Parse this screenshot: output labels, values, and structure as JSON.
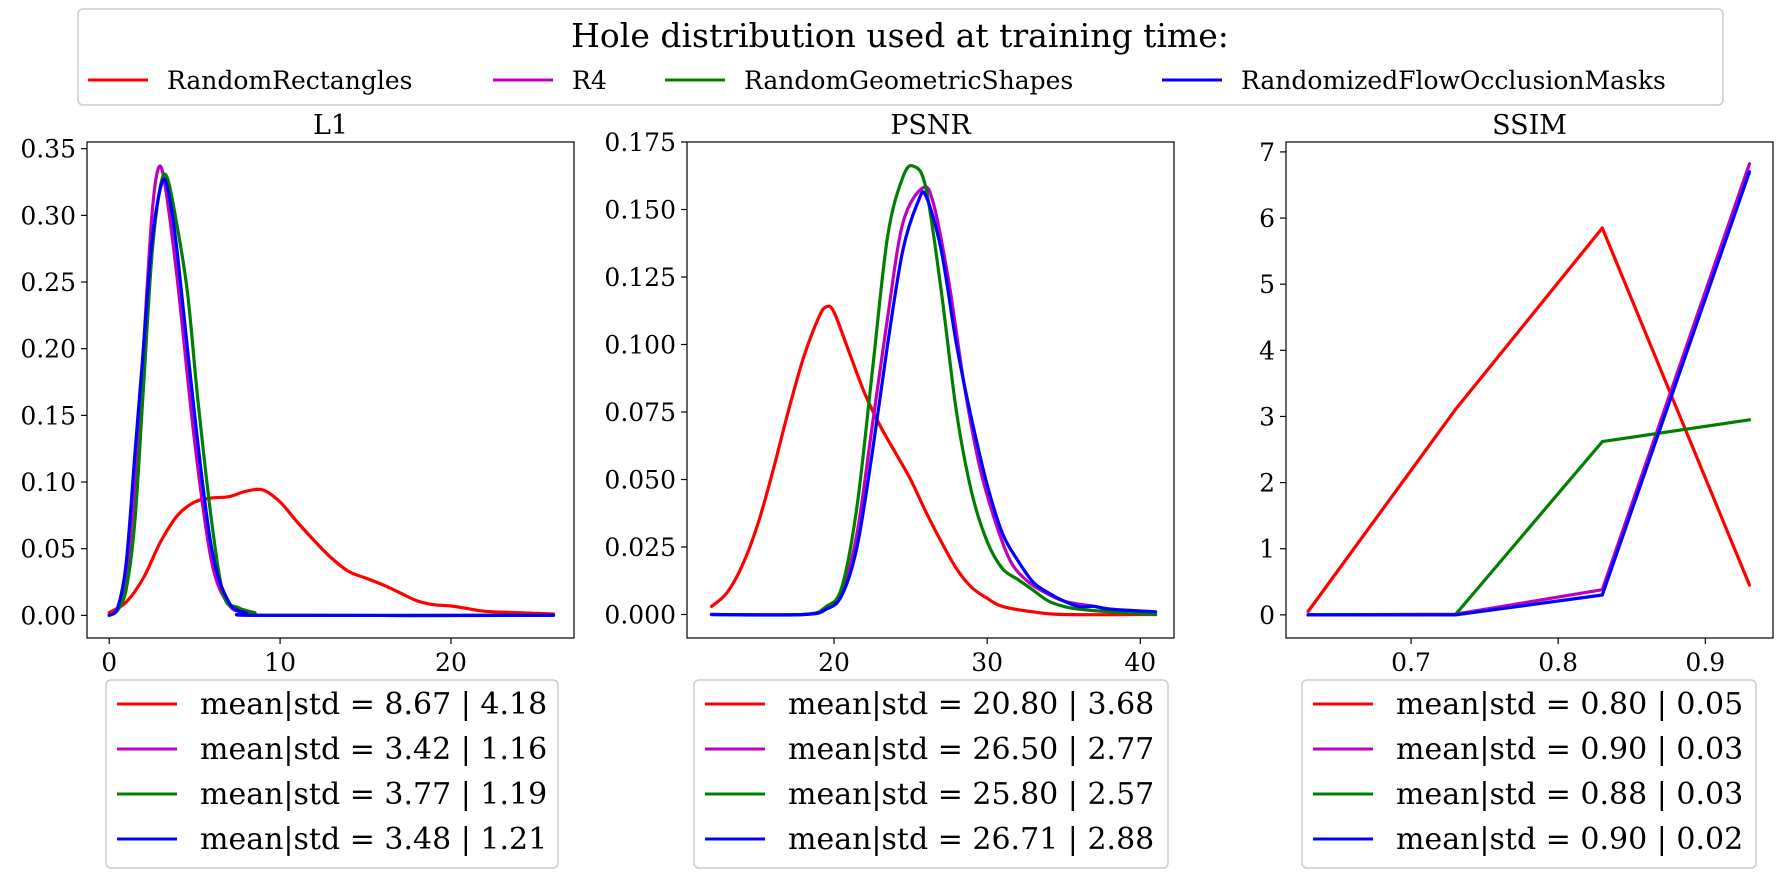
{
  "figure_title": "Hole distribution used at training time:",
  "legend_entries": [
    {
      "name": "RandomRectangles",
      "color": "#ff0000"
    },
    {
      "name": "R4",
      "color": "#bf00bf"
    },
    {
      "name": "RandomGeometricShapes",
      "color": "#008000"
    },
    {
      "name": "RandomizedFlowOcclusionMasks",
      "color": "#0000ff"
    }
  ],
  "chart_data": [
    {
      "type": "line",
      "title": "L1",
      "xlim": [
        -1.3,
        27.2
      ],
      "ylim": [
        -0.017,
        0.355
      ],
      "xticks": [
        0,
        10,
        20
      ],
      "xtick_labels": [
        "0",
        "10",
        "20"
      ],
      "yticks": [
        0.0,
        0.05,
        0.1,
        0.15,
        0.2,
        0.25,
        0.3,
        0.35
      ],
      "ytick_labels": [
        "0.00",
        "0.05",
        "0.10",
        "0.15",
        "0.20",
        "0.25",
        "0.30",
        "0.35"
      ],
      "series": [
        {
          "name": "RandomRectangles",
          "color": "#ff0000",
          "legend": "mean|std = 8.67 | 4.18",
          "points": [
            [
              0,
              0.002
            ],
            [
              1,
              0.01
            ],
            [
              2,
              0.028
            ],
            [
              3,
              0.055
            ],
            [
              4,
              0.075
            ],
            [
              5,
              0.085
            ],
            [
              6,
              0.088
            ],
            [
              7,
              0.089
            ],
            [
              8,
              0.093
            ],
            [
              9,
              0.094
            ],
            [
              10,
              0.085
            ],
            [
              11,
              0.07
            ],
            [
              12,
              0.056
            ],
            [
              13,
              0.043
            ],
            [
              14,
              0.033
            ],
            [
              15,
              0.028
            ],
            [
              16,
              0.023
            ],
            [
              17,
              0.017
            ],
            [
              18,
              0.011
            ],
            [
              19,
              0.008
            ],
            [
              20,
              0.007
            ],
            [
              21,
              0.005
            ],
            [
              22,
              0.003
            ],
            [
              24,
              0.002
            ],
            [
              26,
              0.001
            ]
          ]
        },
        {
          "name": "R4",
          "color": "#bf00bf",
          "legend": "mean|std = 3.42 | 1.16",
          "points": [
            [
              0,
              0.0
            ],
            [
              0.5,
              0.005
            ],
            [
              1,
              0.03
            ],
            [
              1.5,
              0.1
            ],
            [
              2,
              0.2
            ],
            [
              2.5,
              0.3
            ],
            [
              2.9,
              0.336
            ],
            [
              3.3,
              0.32
            ],
            [
              4,
              0.25
            ],
            [
              5,
              0.13
            ],
            [
              6,
              0.04
            ],
            [
              7,
              0.008
            ],
            [
              8,
              0.002
            ],
            [
              9,
              0.0
            ],
            [
              26,
              0.0
            ]
          ]
        },
        {
          "name": "RandomGeometricShapes",
          "color": "#008000",
          "legend": "mean|std = 3.77 | 1.19",
          "points": [
            [
              0,
              0.0
            ],
            [
              0.5,
              0.004
            ],
            [
              1,
              0.02
            ],
            [
              1.5,
              0.07
            ],
            [
              2,
              0.17
            ],
            [
              2.5,
              0.27
            ],
            [
              3,
              0.322
            ],
            [
              3.4,
              0.328
            ],
            [
              4,
              0.29
            ],
            [
              4.6,
              0.24
            ],
            [
              5.2,
              0.16
            ],
            [
              6,
              0.07
            ],
            [
              6.7,
              0.015
            ],
            [
              7.5,
              0.006
            ],
            [
              8.5,
              0.002
            ],
            [
              9.5,
              0.0
            ],
            [
              26,
              0.0
            ]
          ]
        },
        {
          "name": "RandomizedFlowOcclusionMasks",
          "color": "#0000ff",
          "legend": "mean|std = 3.48 | 1.21",
          "points": [
            [
              0,
              0.0
            ],
            [
              0.5,
              0.006
            ],
            [
              1,
              0.04
            ],
            [
              1.5,
              0.12
            ],
            [
              2,
              0.2
            ],
            [
              2.5,
              0.28
            ],
            [
              3.1,
              0.325
            ],
            [
              3.5,
              0.315
            ],
            [
              4,
              0.27
            ],
            [
              5,
              0.15
            ],
            [
              6,
              0.05
            ],
            [
              7,
              0.01
            ],
            [
              8,
              0.002
            ],
            [
              9,
              0.0
            ],
            [
              26,
              0.0
            ]
          ]
        }
      ]
    },
    {
      "type": "line",
      "title": "PSNR",
      "xlim": [
        10.4,
        42.2
      ],
      "ylim": [
        -0.0087,
        0.175
      ],
      "xticks": [
        20,
        30,
        40
      ],
      "xtick_labels": [
        "20",
        "30",
        "40"
      ],
      "yticks": [
        0.0,
        0.025,
        0.05,
        0.075,
        0.1,
        0.125,
        0.15,
        0.175
      ],
      "ytick_labels": [
        "0.000",
        "0.025",
        "0.050",
        "0.075",
        "0.100",
        "0.125",
        "0.150",
        "0.175"
      ],
      "series": [
        {
          "name": "RandomRectangles",
          "color": "#ff0000",
          "legend": "mean|std = 20.80 | 3.68",
          "points": [
            [
              12,
              0.003
            ],
            [
              13,
              0.008
            ],
            [
              14,
              0.018
            ],
            [
              15,
              0.033
            ],
            [
              16,
              0.053
            ],
            [
              17,
              0.075
            ],
            [
              18,
              0.095
            ],
            [
              19,
              0.11
            ],
            [
              19.5,
              0.114
            ],
            [
              20,
              0.112
            ],
            [
              21,
              0.097
            ],
            [
              22,
              0.082
            ],
            [
              23,
              0.07
            ],
            [
              24,
              0.06
            ],
            [
              25,
              0.05
            ],
            [
              26,
              0.038
            ],
            [
              27,
              0.027
            ],
            [
              28,
              0.017
            ],
            [
              29,
              0.01
            ],
            [
              30,
              0.006
            ],
            [
              31,
              0.003
            ],
            [
              33,
              0.001
            ],
            [
              35,
              0.0
            ],
            [
              41,
              0.0
            ]
          ]
        },
        {
          "name": "R4",
          "color": "#bf00bf",
          "legend": "mean|std = 26.50 | 2.77",
          "points": [
            [
              12,
              0.0
            ],
            [
              18,
              0.0
            ],
            [
              19.5,
              0.002
            ],
            [
              20.5,
              0.008
            ],
            [
              21.5,
              0.03
            ],
            [
              22.5,
              0.07
            ],
            [
              23.5,
              0.11
            ],
            [
              24.5,
              0.145
            ],
            [
              25.8,
              0.158
            ],
            [
              26.5,
              0.152
            ],
            [
              27.5,
              0.123
            ],
            [
              28.5,
              0.085
            ],
            [
              29.5,
              0.055
            ],
            [
              30.5,
              0.035
            ],
            [
              31.5,
              0.02
            ],
            [
              32.5,
              0.013
            ],
            [
              33.5,
              0.009
            ],
            [
              35,
              0.005
            ],
            [
              37,
              0.003
            ],
            [
              38,
              0.002
            ],
            [
              41,
              0.0
            ]
          ]
        },
        {
          "name": "RandomGeometricShapes",
          "color": "#008000",
          "legend": "mean|std = 25.80 | 2.57",
          "points": [
            [
              12,
              0.0
            ],
            [
              18,
              0.0
            ],
            [
              19.5,
              0.003
            ],
            [
              20.5,
              0.01
            ],
            [
              21.5,
              0.04
            ],
            [
              22.5,
              0.09
            ],
            [
              23.5,
              0.14
            ],
            [
              24.5,
              0.162
            ],
            [
              25.2,
              0.166
            ],
            [
              26,
              0.158
            ],
            [
              27,
              0.12
            ],
            [
              28,
              0.075
            ],
            [
              29,
              0.045
            ],
            [
              30,
              0.027
            ],
            [
              31,
              0.017
            ],
            [
              32,
              0.013
            ],
            [
              33,
              0.009
            ],
            [
              34,
              0.005
            ],
            [
              35,
              0.003
            ],
            [
              36,
              0.002
            ],
            [
              38,
              0.001
            ],
            [
              41,
              0.0
            ]
          ]
        },
        {
          "name": "RandomizedFlowOcclusionMasks",
          "color": "#0000ff",
          "legend": "mean|std = 26.71 | 2.88",
          "points": [
            [
              12,
              0.0
            ],
            [
              18,
              0.0
            ],
            [
              19.5,
              0.002
            ],
            [
              20.5,
              0.007
            ],
            [
              21.5,
              0.025
            ],
            [
              22.5,
              0.06
            ],
            [
              23.5,
              0.1
            ],
            [
              24.5,
              0.135
            ],
            [
              25.5,
              0.153
            ],
            [
              26,
              0.155
            ],
            [
              27,
              0.135
            ],
            [
              28,
              0.1
            ],
            [
              29,
              0.072
            ],
            [
              30,
              0.048
            ],
            [
              31,
              0.03
            ],
            [
              32,
              0.02
            ],
            [
              33,
              0.012
            ],
            [
              34,
              0.008
            ],
            [
              35,
              0.005
            ],
            [
              36,
              0.003
            ],
            [
              37,
              0.003
            ],
            [
              38,
              0.002
            ],
            [
              41,
              0.001
            ]
          ]
        }
      ]
    },
    {
      "type": "line",
      "title": "SSIM",
      "xlim": [
        0.615,
        0.946
      ],
      "ylim": [
        -0.35,
        7.15
      ],
      "xticks": [
        0.7,
        0.8,
        0.9
      ],
      "xtick_labels": [
        "0.7",
        "0.8",
        "0.9"
      ],
      "yticks": [
        0,
        1,
        2,
        3,
        4,
        5,
        6,
        7
      ],
      "ytick_labels": [
        "0",
        "1",
        "2",
        "3",
        "4",
        "5",
        "6",
        "7"
      ],
      "series": [
        {
          "name": "RandomRectangles",
          "color": "#ff0000",
          "legend": "mean|std = 0.80 | 0.05",
          "points": [
            [
              0.63,
              0.05
            ],
            [
              0.73,
              3.1
            ],
            [
              0.83,
              5.85
            ],
            [
              0.93,
              0.45
            ]
          ]
        },
        {
          "name": "R4",
          "color": "#bf00bf",
          "legend": "mean|std = 0.90 | 0.03",
          "points": [
            [
              0.63,
              0.0
            ],
            [
              0.73,
              0.01
            ],
            [
              0.83,
              0.38
            ],
            [
              0.93,
              6.82
            ]
          ]
        },
        {
          "name": "RandomGeometricShapes",
          "color": "#008000",
          "legend": "mean|std = 0.88 | 0.03",
          "points": [
            [
              0.63,
              0.0
            ],
            [
              0.73,
              0.0
            ],
            [
              0.83,
              2.62
            ],
            [
              0.93,
              2.95
            ]
          ]
        },
        {
          "name": "RandomizedFlowOcclusionMasks",
          "color": "#0000ff",
          "legend": "mean|std = 0.90 | 0.02",
          "points": [
            [
              0.63,
              0.0
            ],
            [
              0.73,
              0.0
            ],
            [
              0.83,
              0.3
            ],
            [
              0.93,
              6.7
            ]
          ]
        }
      ]
    }
  ]
}
